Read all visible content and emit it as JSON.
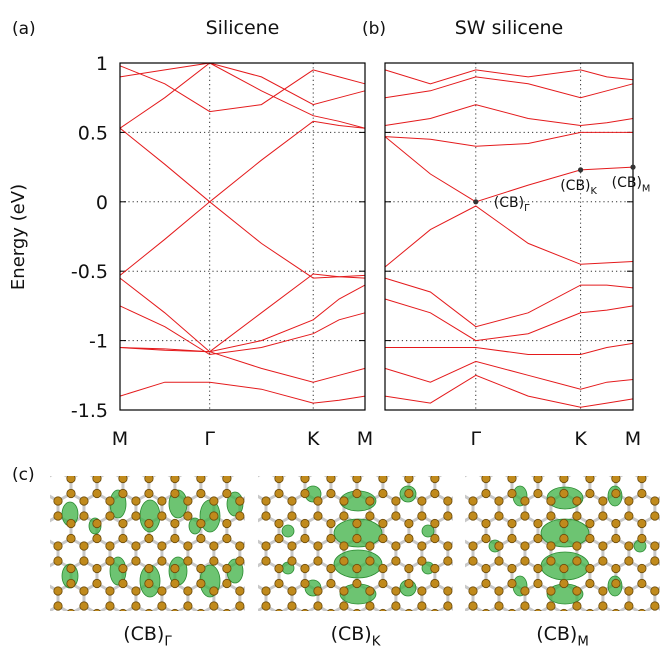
{
  "chart_data": [
    {
      "type": "line",
      "panel_label": "(a)",
      "title": "Silicene",
      "y_label": "Energy (eV)",
      "color": "#e41a1c",
      "grid": true,
      "xlim": [
        0,
        2.366
      ],
      "ylim": [
        -1.5,
        1
      ],
      "xticks": [
        {
          "value": 0,
          "label": "M"
        },
        {
          "value": 0.866,
          "label": "Γ"
        },
        {
          "value": 1.866,
          "label": "K"
        },
        {
          "value": 2.366,
          "label": "M"
        }
      ],
      "yticks": [
        1,
        0.5,
        0,
        -0.5,
        -1,
        -1.5
      ],
      "x": [
        0,
        0.433,
        0.866,
        1.366,
        1.866,
        2.116,
        2.366
      ],
      "series": [
        {
          "values": [
            0.53,
            0.27,
            0,
            0.3,
            0.58,
            0.55,
            0.53
          ]
        },
        {
          "values": [
            -0.53,
            -0.27,
            0,
            -0.3,
            -0.55,
            -0.54,
            -0.53
          ]
        },
        {
          "values": [
            0.53,
            0.75,
            1.0,
            0.8,
            0.62,
            0.58,
            0.53
          ]
        },
        {
          "values": [
            -0.55,
            -0.8,
            -1.08,
            -0.8,
            -0.52,
            -0.54,
            -0.55
          ]
        },
        {
          "values": [
            0.9,
            0.95,
            1.0,
            0.9,
            0.7,
            0.75,
            0.8
          ]
        },
        {
          "values": [
            -1.05,
            -1.07,
            -1.08,
            -1.0,
            -0.85,
            -0.7,
            -0.6
          ]
        },
        {
          "values": [
            -1.05,
            -1.06,
            -1.08,
            -1.2,
            -1.3,
            -1.25,
            -1.2
          ]
        },
        {
          "values": [
            0.98,
            0.85,
            0.65,
            0.7,
            0.95,
            0.9,
            0.85
          ]
        },
        {
          "values": [
            -1.4,
            -1.3,
            -1.3,
            -1.35,
            -1.45,
            -1.43,
            -1.4
          ]
        },
        {
          "values": [
            -0.75,
            -0.9,
            -1.1,
            -1.05,
            -0.95,
            -0.85,
            -0.8
          ]
        }
      ]
    },
    {
      "type": "line",
      "panel_label": "(b)",
      "title": "SW silicene",
      "color": "#e41a1c",
      "grid": true,
      "xlim": [
        0,
        2.366
      ],
      "ylim": [
        -1.5,
        1
      ],
      "xticks": [
        {
          "value": 0.866,
          "label": "Γ"
        },
        {
          "value": 1.866,
          "label": "K"
        },
        {
          "value": 2.366,
          "label": "M"
        }
      ],
      "yticks": [
        1,
        0.5,
        0,
        -0.5,
        -1,
        -1.5
      ],
      "x": [
        0,
        0.433,
        0.866,
        1.366,
        1.866,
        2.116,
        2.366
      ],
      "series": [
        {
          "values": [
            0.47,
            0.2,
            0.0,
            0.12,
            0.23,
            0.24,
            0.25
          ]
        },
        {
          "values": [
            -0.47,
            -0.2,
            -0.03,
            -0.3,
            -0.45,
            -0.44,
            -0.43
          ]
        },
        {
          "values": [
            0.47,
            0.45,
            0.4,
            0.42,
            0.5,
            0.5,
            0.5
          ]
        },
        {
          "values": [
            0.55,
            0.6,
            0.7,
            0.6,
            0.55,
            0.57,
            0.6
          ]
        },
        {
          "values": [
            0.75,
            0.8,
            0.9,
            0.85,
            0.75,
            0.8,
            0.85
          ]
        },
        {
          "values": [
            0.95,
            0.85,
            0.95,
            0.9,
            0.95,
            0.9,
            0.88
          ]
        },
        {
          "values": [
            -0.55,
            -0.65,
            -0.9,
            -0.8,
            -0.6,
            -0.6,
            -0.62
          ]
        },
        {
          "values": [
            -0.7,
            -0.8,
            -1.0,
            -0.95,
            -0.8,
            -0.78,
            -0.75
          ]
        },
        {
          "values": [
            -1.05,
            -1.05,
            -1.05,
            -1.1,
            -1.1,
            -1.05,
            -1.02
          ]
        },
        {
          "values": [
            -1.2,
            -1.3,
            -1.15,
            -1.25,
            -1.35,
            -1.3,
            -1.28
          ]
        },
        {
          "values": [
            -1.4,
            -1.45,
            -1.25,
            -1.4,
            -1.48,
            -1.45,
            -1.42
          ]
        }
      ],
      "annotations": [
        {
          "label": "(CB)",
          "sub": "Γ",
          "x": 0.866,
          "y": 0
        },
        {
          "label": "(CB)",
          "sub": "K",
          "x": 1.866,
          "y": 0.23
        },
        {
          "label": "(CB)",
          "sub": "M",
          "x": 2.366,
          "y": 0.25
        }
      ]
    }
  ],
  "panel_c": {
    "label": "(c)",
    "images": [
      {
        "label": "(CB)",
        "sub": "Γ"
      },
      {
        "label": "(CB)",
        "sub": "K"
      },
      {
        "label": "(CB)",
        "sub": "M"
      }
    ]
  }
}
